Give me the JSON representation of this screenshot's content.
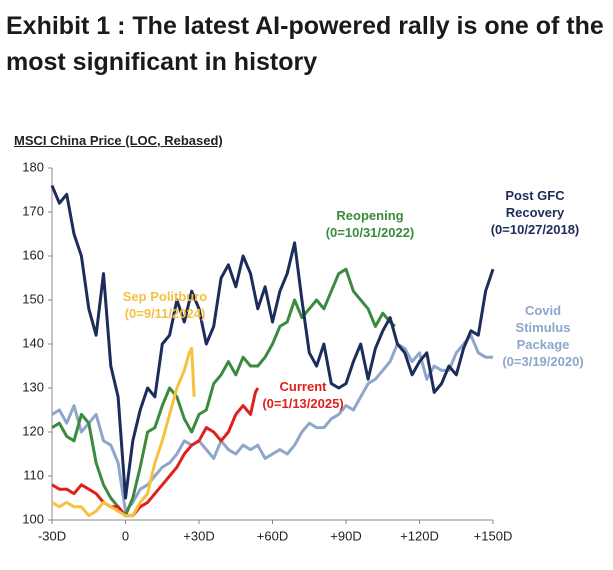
{
  "title": "Exhibit 1 : The latest AI-powered rally is one of the most significant in history",
  "chart_data": {
    "type": "line",
    "y_label": "MSCI China Price (LOC, Rebased)",
    "xlim": [
      -30,
      150
    ],
    "xticks": [
      {
        "value": -30,
        "label": "-30D"
      },
      0,
      {
        "value": 30,
        "label": "+30D"
      },
      {
        "value": 60,
        "label": "+60D"
      },
      {
        "value": 90,
        "label": "+90D"
      },
      {
        "value": 120,
        "label": "+120D"
      },
      {
        "value": 150,
        "label": "+150D"
      }
    ],
    "ylim": [
      100,
      180
    ],
    "yticks": [
      100,
      110,
      120,
      130,
      140,
      150,
      160,
      170,
      180
    ],
    "grid": false,
    "series": [
      {
        "name": "Covid Stimulus Package",
        "note": "(0=3/19/2020)",
        "color": "#8ea6cb",
        "x": [
          -30,
          -27,
          -24,
          -21,
          -18,
          -15,
          -12,
          -9,
          -6,
          -3,
          0,
          3,
          6,
          9,
          12,
          15,
          18,
          21,
          24,
          27,
          30,
          33,
          36,
          39,
          42,
          45,
          48,
          51,
          54,
          57,
          60,
          63,
          66,
          69,
          72,
          75,
          78,
          81,
          84,
          87,
          90,
          93,
          96,
          99,
          102,
          105,
          108,
          111,
          114,
          117,
          120,
          123,
          126,
          129,
          132,
          135,
          138,
          141,
          144,
          147,
          150
        ],
        "values": [
          124,
          125,
          122,
          126,
          120,
          122,
          124,
          118,
          117,
          113,
          102,
          104,
          107,
          108,
          110,
          112,
          113,
          115,
          118,
          117,
          118,
          116,
          114,
          118,
          116,
          115,
          117,
          116,
          117,
          114,
          115,
          116,
          115,
          117,
          120,
          122,
          121,
          121,
          123,
          124,
          126,
          125,
          128,
          131,
          132,
          134,
          136,
          140,
          139,
          136,
          138,
          132,
          135,
          134,
          134,
          138,
          140,
          142,
          138,
          137,
          137
        ]
      },
      {
        "name": "Reopening",
        "note": "(0=10/31/2022)",
        "color": "#3b8a3e",
        "x": [
          -30,
          -27,
          -24,
          -21,
          -18,
          -15,
          -12,
          -9,
          -6,
          -3,
          0,
          3,
          6,
          9,
          12,
          15,
          18,
          21,
          24,
          27,
          30,
          33,
          36,
          39,
          42,
          45,
          48,
          51,
          54,
          57,
          60,
          63,
          66,
          69,
          72,
          75,
          78,
          81,
          84,
          87,
          90,
          93,
          96,
          99,
          102,
          105,
          108,
          110
        ],
        "values": [
          121,
          122,
          119,
          118,
          124,
          122,
          113,
          108,
          105,
          103,
          101,
          105,
          112,
          120,
          121,
          126,
          130,
          128,
          123,
          120,
          124,
          125,
          131,
          133,
          136,
          133,
          137,
          135,
          135,
          137,
          140,
          144,
          145,
          150,
          146,
          148,
          150,
          148,
          152,
          156,
          157,
          152,
          150,
          148,
          144,
          147,
          145,
          144
        ]
      },
      {
        "name": "Post GFC Recovery",
        "note": "(0=10/27/2018)",
        "color": "#1c2c5b",
        "x": [
          -30,
          -27,
          -24,
          -21,
          -18,
          -15,
          -12,
          -9,
          -6,
          -3,
          0,
          3,
          6,
          9,
          12,
          15,
          18,
          21,
          24,
          27,
          30,
          33,
          36,
          39,
          42,
          45,
          48,
          51,
          54,
          57,
          60,
          63,
          66,
          69,
          72,
          75,
          78,
          81,
          84,
          87,
          90,
          93,
          96,
          99,
          102,
          105,
          108,
          111,
          114,
          117,
          120,
          123,
          126,
          129,
          132,
          135,
          138,
          141,
          144,
          147,
          150
        ],
        "values": [
          176,
          172,
          174,
          165,
          160,
          148,
          142,
          156,
          135,
          128,
          105,
          118,
          125,
          130,
          128,
          140,
          142,
          150,
          145,
          152,
          148,
          140,
          144,
          155,
          158,
          153,
          160,
          156,
          148,
          153,
          145,
          152,
          156,
          163,
          150,
          138,
          135,
          140,
          131,
          130,
          131,
          136,
          140,
          132,
          139,
          143,
          146,
          140,
          138,
          133,
          136,
          138,
          129,
          131,
          135,
          133,
          139,
          143,
          142,
          152,
          157
        ]
      },
      {
        "name": "Current",
        "note": "(0=1/13/2025)",
        "color": "#e0201c",
        "x": [
          -30,
          -27,
          -24,
          -21,
          -18,
          -15,
          -12,
          -9,
          -6,
          -3,
          0,
          3,
          6,
          9,
          12,
          15,
          18,
          21,
          24,
          27,
          30,
          33,
          36,
          39,
          42,
          45,
          48,
          51,
          53,
          54
        ],
        "values": [
          108,
          107,
          107,
          106,
          108,
          107,
          106,
          104,
          103,
          103,
          101,
          101,
          103,
          104,
          106,
          108,
          110,
          112,
          115,
          117,
          118,
          121,
          120,
          118,
          120,
          124,
          126,
          124,
          129,
          130
        ]
      },
      {
        "name": "Sep Politburo",
        "note": "(0=9/11/2024)",
        "color": "#f4c23f",
        "x": [
          -30,
          -27,
          -24,
          -21,
          -18,
          -15,
          -12,
          -9,
          -6,
          -3,
          0,
          3,
          6,
          9,
          12,
          15,
          18,
          21,
          24,
          26,
          27,
          28
        ],
        "values": [
          104,
          103,
          104,
          103,
          103,
          101,
          102,
          104,
          103,
          102,
          101,
          101,
          104,
          106,
          113,
          118,
          124,
          130,
          134,
          138,
          139,
          128
        ]
      }
    ]
  }
}
